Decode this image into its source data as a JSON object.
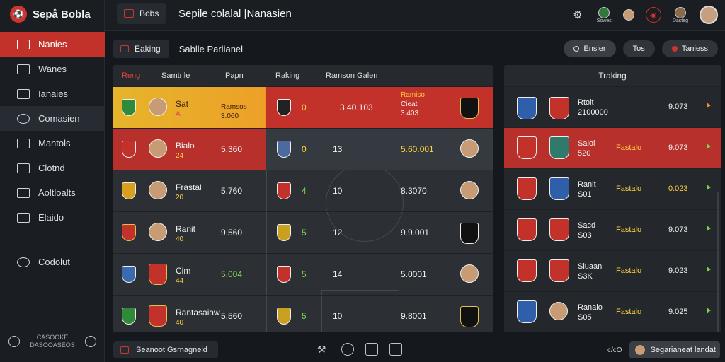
{
  "brand": {
    "name": "Sepå Bobla"
  },
  "sidebar": {
    "items": [
      {
        "label": "Nanies",
        "icon": "folder-icon"
      },
      {
        "label": "Wanes",
        "icon": "list-icon"
      },
      {
        "label": "Ianaies",
        "icon": "chart-icon"
      },
      {
        "label": "Comasien",
        "icon": "chat-icon"
      },
      {
        "label": "Mantols",
        "icon": "share-icon"
      },
      {
        "label": "Clotnd",
        "icon": "calendar-icon"
      },
      {
        "label": "Aoltloalts",
        "icon": "bars-icon"
      },
      {
        "label": "Elaido",
        "icon": "edit-icon"
      },
      {
        "label": "Codolut",
        "icon": "clock-icon"
      }
    ],
    "footer": {
      "line1": "CASOOKE",
      "line2": "DASOOASEOS"
    }
  },
  "topbar": {
    "tab_label": "Bobs",
    "title": "Sepile colalal |Nanasien",
    "icons": [
      "settings-icon",
      "ball-icon",
      "player-icon",
      "target-icon",
      "trophy-icon"
    ],
    "badge_label_1": "Sowes",
    "badge_label_2": "Dasteg"
  },
  "subbar": {
    "chip_label": "Eaking",
    "title": "Sablle Parlianel",
    "btn1": "Ensier",
    "btn2": "Tos",
    "btn3": "Taniess"
  },
  "table": {
    "headers": {
      "rang": "Reng",
      "samtnle": "Samtnle",
      "papn": "Papn",
      "raking": "Raking",
      "ramson": "Ramson Galen"
    },
    "rows": [
      {
        "name": "Sat",
        "sub": "A",
        "score": "Ramsos 3.060",
        "n": "0",
        "val": "3.40.103",
        "right_top": "Ramiso",
        "right_mid": "Cieat",
        "right_bot": "3.403"
      },
      {
        "name": "Bialo",
        "sub": "24",
        "score": "5.360",
        "n": "0",
        "val": "13",
        "right_top": "5.60.001",
        "right_mid": "",
        "right_bot": ""
      },
      {
        "name": "Frastal",
        "sub": "20",
        "score": "5.760",
        "n": "4",
        "val": "10",
        "right_top": "8.3070",
        "right_mid": "",
        "right_bot": ""
      },
      {
        "name": "Ranit",
        "sub": "40",
        "score": "9.560",
        "n": "5",
        "val": "12",
        "right_top": "9.9.001",
        "right_mid": "",
        "right_bot": ""
      },
      {
        "name": "Cim",
        "sub": "44",
        "score": "5.004",
        "n": "5",
        "val": "14",
        "right_top": "5.0001",
        "right_mid": "",
        "right_bot": ""
      },
      {
        "name": "Rantasaiaw",
        "sub": "40",
        "score": "5.560",
        "n": "5",
        "val": "10",
        "right_top": "9.8001",
        "right_mid": "",
        "right_bot": ""
      }
    ]
  },
  "ranking": {
    "title": "Traking",
    "rows": [
      {
        "name": "Rtoit",
        "sub": "2100000",
        "label": "",
        "value": "9.073"
      },
      {
        "name": "Salol",
        "sub": "520",
        "label": "Fastalo",
        "value": "9.073"
      },
      {
        "name": "Ranit",
        "sub": "S01",
        "label": "Fastalo",
        "value": "0.023"
      },
      {
        "name": "Sacd",
        "sub": "S03",
        "label": "Fastalo",
        "value": "9.073"
      },
      {
        "name": "Siuaan",
        "sub": "S3K",
        "label": "Fastalo",
        "value": "9.023"
      },
      {
        "name": "Ranalo",
        "sub": "S05",
        "label": "Fastalo",
        "value": "9.025"
      }
    ]
  },
  "bottom": {
    "left_label": "Seanoot Gsrnagneld",
    "right_small": "c/cO",
    "right_btn": "Segarianeat landat"
  }
}
